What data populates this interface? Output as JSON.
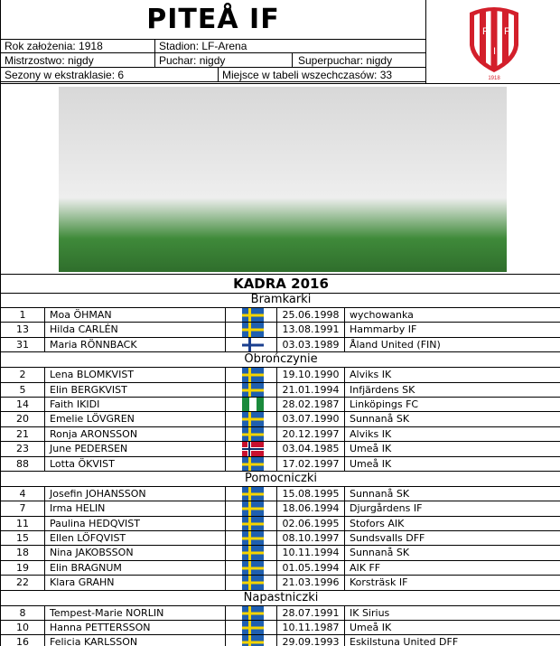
{
  "header": {
    "title": "PITEÅ IF",
    "logo_year": "1918",
    "logo_letters": "P I F",
    "founded": "Rok założenia: 1918",
    "stadium": "Stadion: LF-Arena",
    "championship": "Mistrzostwo: nigdy",
    "cup": "Puchar: nigdy",
    "supercup": "Superpuchar: nigdy",
    "seasons": "Sezony w ekstraklasie: 6",
    "alltime": "Miejsce w tabeli wszechczasów: 33"
  },
  "squad_title": "KADRA 2016",
  "flag_colors": {
    "sweden": [
      "#1f5fb0",
      "#f5d400"
    ],
    "finland": [
      "#ffffff",
      "#1a3f8f"
    ],
    "nigeria": [
      "#1a8a3c",
      "#ffffff"
    ],
    "norway": [
      "#c8102e",
      "#ffffff",
      "#0b2f6b"
    ]
  },
  "sections": [
    {
      "name": "Bramkarki",
      "players": [
        {
          "no": "1",
          "name": "Moa ÖHMAN",
          "flag": "sweden",
          "dob": "25.06.1998",
          "club": "wychowanka"
        },
        {
          "no": "13",
          "name": "Hilda CARLÉN",
          "flag": "sweden",
          "dob": "13.08.1991",
          "club": "Hammarby IF"
        },
        {
          "no": "31",
          "name": "Maria RÖNNBACK",
          "flag": "finland",
          "dob": "03.03.1989",
          "club": "Åland United (FIN)"
        }
      ]
    },
    {
      "name": "Obrończynie",
      "players": [
        {
          "no": "2",
          "name": "Lena BLOMKVIST",
          "flag": "sweden",
          "dob": "19.10.1990",
          "club": "Alviks IK"
        },
        {
          "no": "5",
          "name": "Elin BERGKVIST",
          "flag": "sweden",
          "dob": "21.01.1994",
          "club": "Infjärdens SK"
        },
        {
          "no": "14",
          "name": "Faith IKIDI",
          "flag": "nigeria",
          "dob": "28.02.1987",
          "club": "Linköpings FC"
        },
        {
          "no": "20",
          "name": "Emelie LÖVGREN",
          "flag": "sweden",
          "dob": "03.07.1990",
          "club": "Sunnanå SK"
        },
        {
          "no": "21",
          "name": "Ronja ARONSSON",
          "flag": "sweden",
          "dob": "20.12.1997",
          "club": "Alviks IK"
        },
        {
          "no": "23",
          "name": "June PEDERSEN",
          "flag": "norway",
          "dob": "03.04.1985",
          "club": "Umeå IK"
        },
        {
          "no": "88",
          "name": "Lotta ÖKVIST",
          "flag": "sweden",
          "dob": "17.02.1997",
          "club": "Umeå IK"
        }
      ]
    },
    {
      "name": "Pomocniczki",
      "players": [
        {
          "no": "4",
          "name": "Josefin JOHANSSON",
          "flag": "sweden",
          "dob": "15.08.1995",
          "club": "Sunnanå SK"
        },
        {
          "no": "7",
          "name": "Irma HELIN",
          "flag": "sweden",
          "dob": "18.06.1994",
          "club": "Djurgårdens IF"
        },
        {
          "no": "11",
          "name": "Paulina HEDQVIST",
          "flag": "sweden",
          "dob": "02.06.1995",
          "club": "Stofors AIK"
        },
        {
          "no": "15",
          "name": "Ellen LÖFQVIST",
          "flag": "sweden",
          "dob": "08.10.1997",
          "club": "Sundsvalls DFF"
        },
        {
          "no": "18",
          "name": "Nina JAKOBSSON",
          "flag": "sweden",
          "dob": "10.11.1994",
          "club": "Sunnanå SK"
        },
        {
          "no": "19",
          "name": "Elin BRAGNUM",
          "flag": "sweden",
          "dob": "01.05.1994",
          "club": "AIK FF"
        },
        {
          "no": "22",
          "name": "Klara GRAHN",
          "flag": "sweden",
          "dob": "21.03.1996",
          "club": "Korsträsk IF"
        }
      ]
    },
    {
      "name": "Napastniczki",
      "players": [
        {
          "no": "8",
          "name": "Tempest-Marie NORLIN",
          "flag": "sweden",
          "dob": "28.07.1991",
          "club": "IK Sirius"
        },
        {
          "no": "10",
          "name": "Hanna PETTERSSON",
          "flag": "sweden",
          "dob": "10.11.1987",
          "club": "Umeå IK"
        },
        {
          "no": "16",
          "name": "Felicia KARLSSON",
          "flag": "sweden",
          "dob": "29.09.1993",
          "club": "Eskilstuna United DFF"
        }
      ]
    }
  ]
}
